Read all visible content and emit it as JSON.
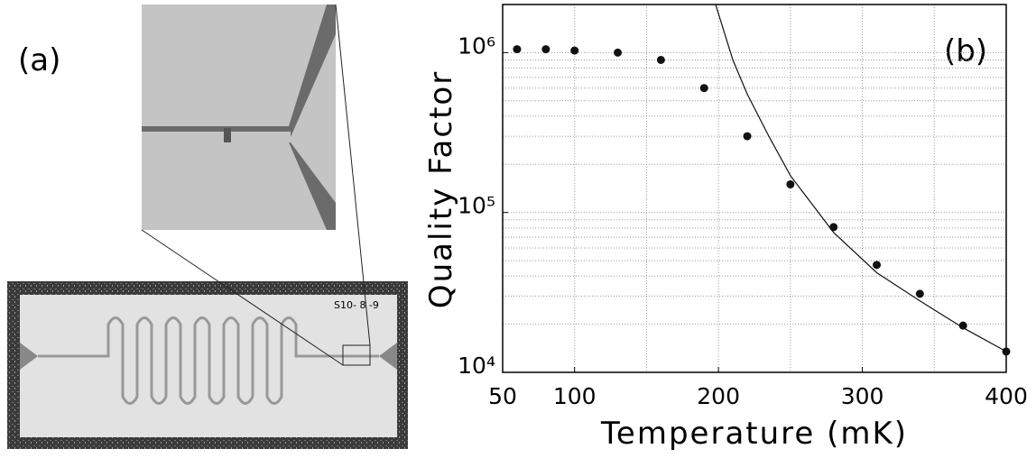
{
  "panel_a": {
    "label": "(a)",
    "chip_label": "S10- 8 -9"
  },
  "chart_data": {
    "type": "scatter",
    "xlabel": "Temperature (mK)",
    "ylabel": "Quality Factor",
    "annotation": "(b)",
    "xlim": [
      50,
      400
    ],
    "xticks": [
      50,
      100,
      200,
      300,
      400
    ],
    "x_minor_ticks": [
      150,
      250,
      350
    ],
    "ylim": [
      10000,
      2000000
    ],
    "ylog": true,
    "yticks": [
      {
        "value": 10000,
        "label": "10⁴"
      },
      {
        "value": 100000,
        "label": "10⁵"
      },
      {
        "value": 1000000,
        "label": "10⁶"
      }
    ],
    "y_minor_ticks": [
      20000,
      30000,
      40000,
      50000,
      60000,
      70000,
      80000,
      90000,
      200000,
      300000,
      400000,
      500000,
      600000,
      700000,
      800000,
      900000
    ],
    "grid": true,
    "series": [
      {
        "style": "markers",
        "color": "#111111",
        "x": [
          60,
          80,
          100,
          130,
          160,
          190,
          220,
          250,
          280,
          310,
          340,
          370,
          400
        ],
        "values": [
          1050000,
          1050000,
          1030000,
          1000000,
          900000,
          600000,
          300000,
          150000,
          81000,
          47000,
          31000,
          19600,
          13500
        ]
      },
      {
        "style": "line",
        "color": "#111111",
        "x": [
          198,
          210,
          220,
          235,
          250,
          280,
          310,
          340,
          370,
          400
        ],
        "values": [
          2000000,
          900000,
          550000,
          300000,
          170000,
          75000,
          42000,
          28000,
          19000,
          13500
        ]
      }
    ]
  }
}
